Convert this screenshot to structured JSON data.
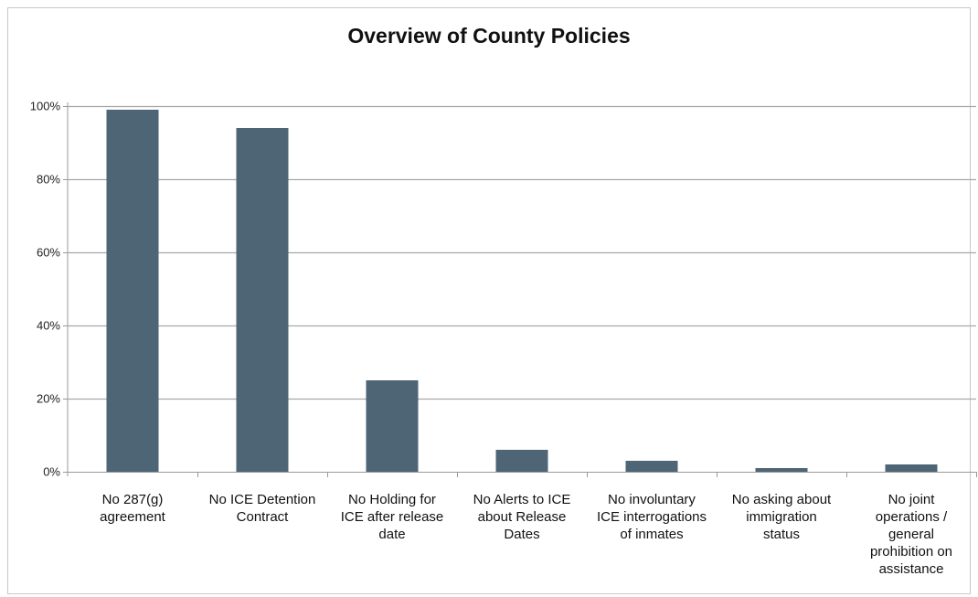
{
  "chart_data": {
    "type": "bar",
    "title": "Overview of County Policies",
    "xlabel": "",
    "ylabel": "",
    "ylim": [
      0,
      100
    ],
    "yticks": [
      "0%",
      "20%",
      "40%",
      "60%",
      "80%",
      "100%"
    ],
    "ytick_values": [
      0,
      20,
      40,
      60,
      80,
      100
    ],
    "grid": true,
    "bar_color": "#4e6575",
    "categories": [
      [
        "No 287(g)",
        "agreement"
      ],
      [
        "No ICE Detention",
        "Contract"
      ],
      [
        "No Holding for",
        "ICE after release",
        "date"
      ],
      [
        "No Alerts to ICE",
        "about Release",
        "Dates"
      ],
      [
        "No involuntary",
        "ICE interrogations",
        "of inmates"
      ],
      [
        "No asking about",
        "immigration",
        "status"
      ],
      [
        "No joint",
        "operations /",
        "general",
        "prohibition on",
        "assistance"
      ]
    ],
    "values": [
      99,
      94,
      25,
      6,
      3,
      1,
      2
    ]
  }
}
